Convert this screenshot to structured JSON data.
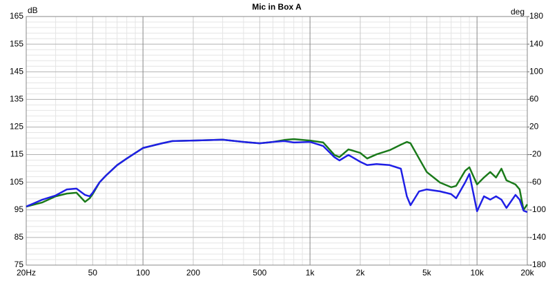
{
  "chart_data": {
    "type": "line",
    "title": "Mic in Box A",
    "ylabel": "dB",
    "y2label": "deg",
    "xscale": "log",
    "grid": true,
    "xlim": [
      20,
      20000
    ],
    "xticks": [
      {
        "value": 20,
        "label": "20Hz"
      },
      50,
      100,
      200,
      500,
      {
        "value": 1000,
        "label": "1k"
      },
      {
        "value": 2000,
        "label": "2k"
      },
      {
        "value": 5000,
        "label": "5k"
      },
      {
        "value": 10000,
        "label": "10k"
      },
      {
        "value": 20000,
        "label": "20k"
      }
    ],
    "xminorticks": [
      30,
      40,
      60,
      70,
      80,
      90,
      300,
      400,
      600,
      700,
      800,
      900,
      3000,
      4000,
      6000,
      7000,
      8000,
      9000
    ],
    "ylim": [
      75,
      165
    ],
    "yticks": [
      75,
      85,
      95,
      105,
      115,
      125,
      135,
      145,
      155,
      165
    ],
    "yminorticks": [
      77,
      79,
      81,
      83,
      87,
      89,
      91,
      93,
      97,
      99,
      101,
      103,
      107,
      109,
      111,
      113,
      117,
      119,
      121,
      123,
      127,
      129,
      131,
      133,
      137,
      139,
      141,
      143,
      147,
      149,
      151,
      153,
      157,
      159,
      161,
      163
    ],
    "y2lim": [
      -180,
      180
    ],
    "y2ticks": [
      -180,
      -140,
      -100,
      -60,
      -20,
      20,
      60,
      100,
      140,
      180
    ],
    "x": [
      20,
      25,
      30,
      35,
      40,
      45,
      48,
      50,
      55,
      60,
      70,
      80,
      100,
      130,
      150,
      200,
      300,
      400,
      500,
      600,
      700,
      800,
      1000,
      1200,
      1400,
      1500,
      1700,
      2000,
      2200,
      2500,
      3000,
      3500,
      3800,
      4000,
      4500,
      5000,
      6000,
      7000,
      7500,
      8500,
      9000,
      10000,
      11000,
      12000,
      13000,
      14000,
      15000,
      17000,
      18000,
      19000,
      20000
    ],
    "series": [
      {
        "color": "#1a7a1a",
        "values": [
          96.2,
          97.7,
          99.9,
          100.9,
          101.2,
          97.9,
          99.2,
          100.7,
          105,
          107.4,
          111.2,
          113.6,
          117.4,
          119.1,
          119.9,
          120.1,
          120.4,
          119.6,
          119.1,
          119.6,
          120.3,
          120.6,
          120.1,
          119.4,
          114.9,
          114.1,
          116.9,
          115.6,
          113.6,
          115.1,
          116.6,
          118.6,
          119.6,
          119.1,
          113.6,
          108.7,
          104.9,
          103.2,
          103.7,
          109.2,
          110.4,
          104.2,
          106.7,
          108.7,
          106.7,
          109.9,
          105.7,
          104.2,
          102.4,
          95,
          97
        ]
      },
      {
        "color": "#1f1fe6",
        "values": [
          96.2,
          98.7,
          100.2,
          102.4,
          102.7,
          100.4,
          99.9,
          101.2,
          105,
          107.4,
          111.2,
          113.6,
          117.4,
          119.1,
          119.9,
          120.1,
          120.4,
          119.6,
          119.1,
          119.6,
          119.9,
          119.4,
          119.6,
          118.1,
          114.1,
          112.9,
          114.9,
          112.4,
          111.2,
          111.6,
          111.2,
          109.9,
          99.9,
          96.7,
          101.7,
          102.4,
          101.7,
          100.7,
          99.2,
          105,
          108,
          94.5,
          99.9,
          98.7,
          99.9,
          98.7,
          95.7,
          100.4,
          98.7,
          94.7,
          94.2
        ]
      }
    ]
  }
}
